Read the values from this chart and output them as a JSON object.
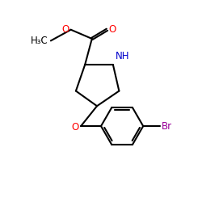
{
  "bg_color": "#ffffff",
  "bond_color": "#000000",
  "N_color": "#0000cc",
  "O_color": "#ff0000",
  "Br_color": "#990099",
  "line_width": 1.5,
  "figsize": [
    2.5,
    2.5
  ],
  "dpi": 100,
  "xlim": [
    0,
    10
  ],
  "ylim": [
    0,
    10
  ]
}
